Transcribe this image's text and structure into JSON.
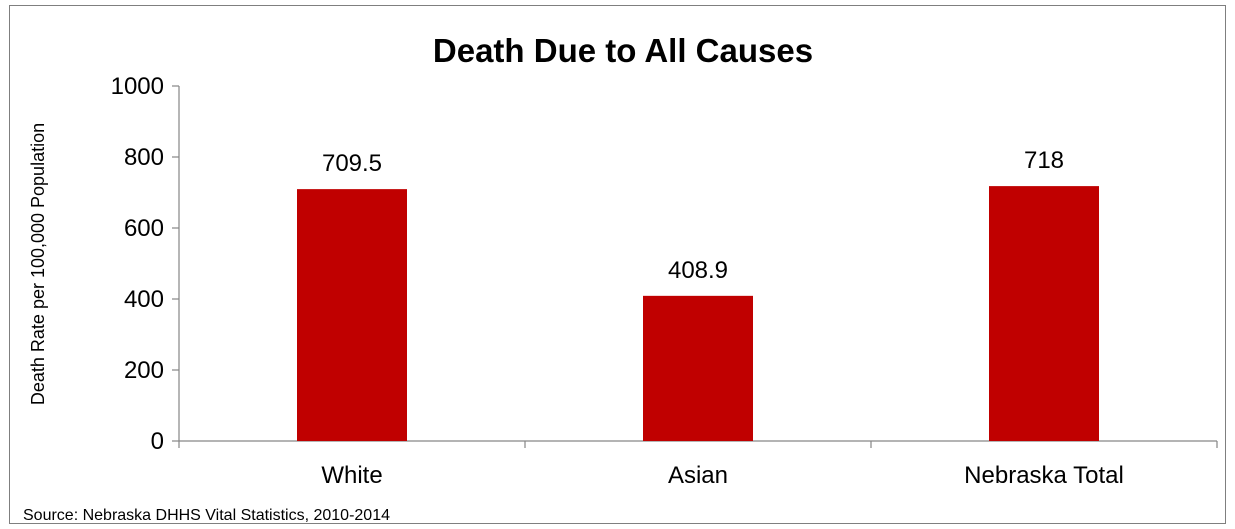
{
  "chart_data": {
    "type": "bar",
    "title": "Death Due to All Causes",
    "xlabel": "",
    "ylabel": "Death Rate per 100,000 Population",
    "categories": [
      "White",
      "Asian",
      "Nebraska Total"
    ],
    "values": [
      709.5,
      408.9,
      718
    ],
    "data_labels": [
      "709.5",
      "408.9",
      "718"
    ],
    "ylim": [
      0,
      1000
    ],
    "yticks": [
      0,
      200,
      400,
      600,
      800,
      1000
    ],
    "grid": false,
    "legend": "none",
    "bar_color": "#C00000"
  },
  "source": "Source: Nebraska DHHS Vital Statistics, 2010-2014"
}
